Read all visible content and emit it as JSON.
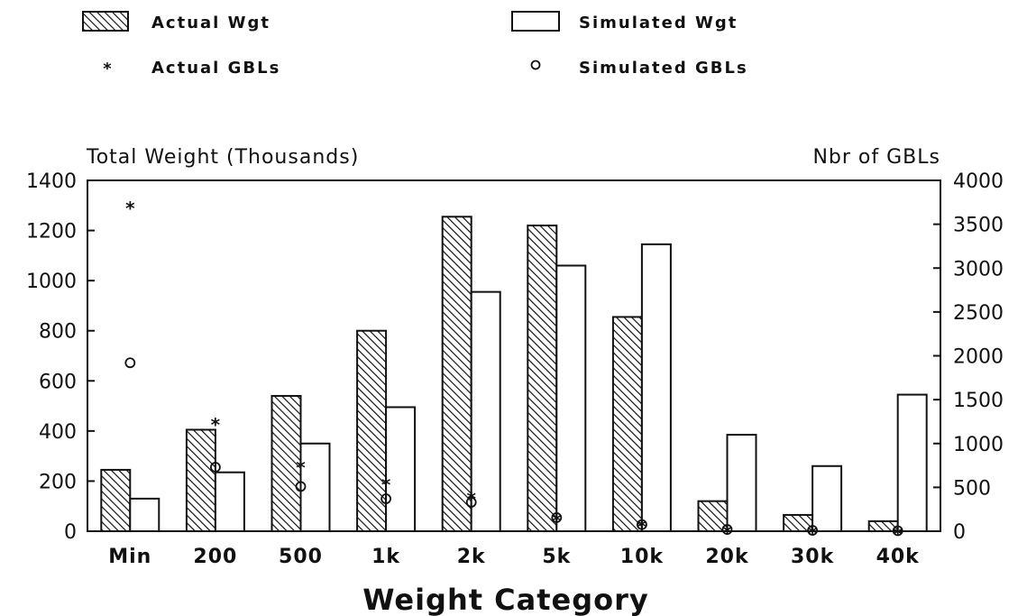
{
  "chart_data": {
    "type": "bar",
    "title": "",
    "xlabel": "Weight Category",
    "ylabel": "Total Weight (Thousands)",
    "y2label": "Nbr of GBLs",
    "categories": [
      "Min",
      "200",
      "500",
      "1k",
      "2k",
      "5k",
      "10k",
      "20k",
      "30k",
      "40k"
    ],
    "ylim": [
      0,
      1400
    ],
    "y2lim": [
      0,
      4000
    ],
    "yticks": [
      "0",
      "200",
      "400",
      "600",
      "800",
      "1000",
      "1200",
      "1400"
    ],
    "y2ticks": [
      "0",
      "500",
      "1000",
      "1500",
      "2000",
      "2500",
      "3000",
      "3500",
      "4000"
    ],
    "series": [
      {
        "name": "Actual Wgt",
        "kind": "bar",
        "style": "hatched",
        "axis": "left",
        "values": [
          245,
          405,
          540,
          800,
          1255,
          1220,
          855,
          120,
          65,
          40
        ]
      },
      {
        "name": "Simulated Wgt",
        "kind": "bar",
        "style": "outline",
        "axis": "left",
        "values": [
          130,
          235,
          350,
          495,
          955,
          1060,
          1145,
          385,
          260,
          545
        ]
      },
      {
        "name": "Actual GBLs",
        "kind": "marker",
        "marker": "star",
        "axis": "right",
        "values": [
          3720,
          1255,
          765,
          570,
          410,
          160,
          90,
          25,
          15,
          5
        ]
      },
      {
        "name": "Simulated GBLs",
        "kind": "marker",
        "marker": "circle",
        "axis": "right",
        "values": [
          1920,
          730,
          510,
          370,
          330,
          155,
          75,
          20,
          10,
          5
        ]
      }
    ],
    "legend_position": "top",
    "grid": false
  },
  "colors": {
    "ink": "#111111",
    "background": "#ffffff"
  }
}
